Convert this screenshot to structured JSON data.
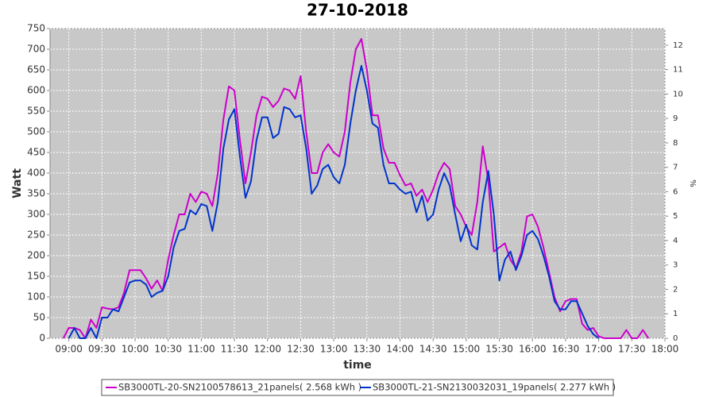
{
  "chart_data": {
    "type": "line",
    "title": "27-10-2018",
    "xlabel": "time",
    "ylabel": "Watt",
    "y2label": "%",
    "x": [
      535,
      540,
      545,
      550,
      555,
      560,
      565,
      570,
      575,
      580,
      585,
      590,
      595,
      600,
      605,
      610,
      615,
      620,
      625,
      630,
      635,
      640,
      645,
      650,
      655,
      660,
      665,
      670,
      675,
      680,
      685,
      690,
      695,
      700,
      705,
      710,
      715,
      720,
      725,
      730,
      735,
      740,
      745,
      750,
      755,
      760,
      765,
      770,
      775,
      780,
      785,
      790,
      795,
      800,
      805,
      810,
      815,
      820,
      825,
      830,
      835,
      840,
      845,
      850,
      855,
      860,
      865,
      870,
      875,
      880,
      885,
      890,
      895,
      900,
      905,
      910,
      915,
      920,
      925,
      930,
      935,
      940,
      945,
      950,
      955,
      960,
      965,
      970,
      975,
      980,
      985,
      990,
      995,
      1000,
      1005,
      1010,
      1015,
      1020,
      1025,
      1030,
      1035,
      1040,
      1045,
      1050,
      1055,
      1060,
      1065
    ],
    "series": [
      {
        "name": "SB3000TL-20-SN2100578613_21panels( 2.568 kWh )",
        "color": "#cc00cc",
        "values": [
          0,
          25,
          25,
          20,
          0,
          45,
          25,
          75,
          72,
          70,
          75,
          110,
          165,
          165,
          165,
          145,
          120,
          140,
          115,
          190,
          250,
          300,
          300,
          350,
          330,
          355,
          350,
          320,
          400,
          530,
          610,
          600,
          480,
          375,
          450,
          540,
          585,
          580,
          560,
          575,
          605,
          600,
          580,
          635,
          500,
          400,
          400,
          450,
          470,
          450,
          440,
          500,
          620,
          700,
          725,
          650,
          540,
          540,
          460,
          425,
          425,
          395,
          370,
          375,
          345,
          360,
          330,
          360,
          400,
          425,
          410,
          320,
          300,
          270,
          250,
          330,
          465,
          380,
          210,
          220,
          230,
          190,
          170,
          210,
          295,
          300,
          270,
          220,
          160,
          100,
          65,
          90,
          95,
          95,
          35,
          20,
          25,
          5,
          0,
          0,
          0,
          0,
          20,
          0,
          0,
          20,
          0
        ]
      },
      {
        "name": "SB3000TL-21-SN2130032031_19panels( 2.277 kWh )",
        "color": "#0033cc",
        "values": [
          null,
          0,
          25,
          0,
          0,
          25,
          0,
          50,
          50,
          70,
          65,
          100,
          135,
          140,
          140,
          130,
          100,
          110,
          115,
          150,
          220,
          260,
          265,
          310,
          300,
          325,
          320,
          260,
          330,
          460,
          530,
          555,
          440,
          340,
          380,
          480,
          535,
          535,
          485,
          495,
          560,
          555,
          535,
          540,
          460,
          350,
          370,
          410,
          420,
          390,
          375,
          420,
          520,
          600,
          660,
          600,
          520,
          510,
          420,
          375,
          375,
          360,
          350,
          355,
          305,
          345,
          285,
          300,
          360,
          400,
          370,
          300,
          235,
          275,
          225,
          215,
          330,
          405,
          300,
          140,
          190,
          210,
          165,
          200,
          250,
          260,
          240,
          200,
          150,
          90,
          70,
          70,
          90,
          90,
          60,
          30,
          10,
          0,
          null,
          null,
          null,
          null,
          null,
          null,
          null,
          null,
          null
        ]
      }
    ],
    "xlim": [
      523,
      1080
    ],
    "xticks": [
      {
        "value": 540,
        "label": "09:00"
      },
      {
        "value": 570,
        "label": "09:30"
      },
      {
        "value": 600,
        "label": "10:00"
      },
      {
        "value": 630,
        "label": "10:30"
      },
      {
        "value": 660,
        "label": "11:00"
      },
      {
        "value": 690,
        "label": "11:30"
      },
      {
        "value": 720,
        "label": "12:00"
      },
      {
        "value": 750,
        "label": "12:30"
      },
      {
        "value": 780,
        "label": "13:00"
      },
      {
        "value": 810,
        "label": "13:30"
      },
      {
        "value": 840,
        "label": "14:00"
      },
      {
        "value": 870,
        "label": "14:30"
      },
      {
        "value": 900,
        "label": "15:00"
      },
      {
        "value": 930,
        "label": "15:30"
      },
      {
        "value": 960,
        "label": "16:00"
      },
      {
        "value": 990,
        "label": "16:30"
      },
      {
        "value": 1020,
        "label": "17:00"
      },
      {
        "value": 1050,
        "label": "17:30"
      },
      {
        "value": 1080,
        "label": "18:00"
      }
    ],
    "ylim": [
      0,
      750
    ],
    "yticks": [
      0,
      50,
      100,
      150,
      200,
      250,
      300,
      350,
      400,
      450,
      500,
      550,
      600,
      650,
      700,
      750
    ],
    "y2lim": [
      0,
      12.68
    ],
    "y2ticks": [
      0,
      1,
      2,
      3,
      4,
      5,
      6,
      7,
      8,
      9,
      10,
      11,
      12
    ],
    "grid": true
  }
}
